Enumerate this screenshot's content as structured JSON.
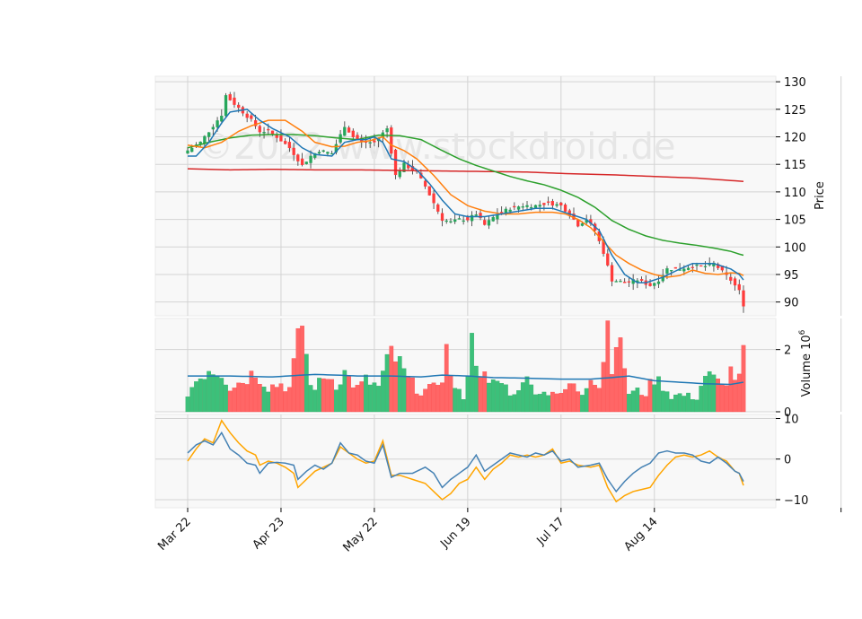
{
  "chart_data": {
    "type": "candlestick",
    "watermark": "©2022 www.stockdroid.de",
    "colors": {
      "up": "#26a65b",
      "down": "#ff3b3b",
      "up_vol": "#3cc07a",
      "down_vol": "#ff6666",
      "ma_fast": "#1f77b4",
      "ma_mid": "#ff7f0e",
      "ma_slow": "#2ca02c",
      "ma_long": "#d62728",
      "osc_a": "#4682b4",
      "osc_b": "#ffa500",
      "vol_ma": "#1f77b4",
      "panel_bg": "#f8f8f8",
      "grid": "#d3d3d3"
    },
    "x_ticks": [
      {
        "label": "Mar 22",
        "index": 0
      },
      {
        "label": "Apr 23",
        "index": 22
      },
      {
        "label": "May 22",
        "index": 44
      },
      {
        "label": "Jun 19",
        "index": 66
      },
      {
        "label": "Jul 17",
        "index": 88
      },
      {
        "label": "Aug 14",
        "index": 110
      }
    ],
    "n_bars": 132,
    "price_panel": {
      "ylabel": "Price",
      "ylim": [
        87.5,
        131
      ],
      "yticks": [
        "90",
        "95",
        "100",
        "105",
        "110",
        "115",
        "120",
        "125",
        "130"
      ],
      "ytick_values": [
        90,
        95,
        100,
        105,
        110,
        115,
        120,
        125,
        130
      ]
    },
    "volume_panel": {
      "ylabel": "Volume  10",
      "ylabel_exp": "6",
      "ylim": [
        0,
        3.0
      ],
      "yticks": [
        "0",
        "2"
      ],
      "ytick_values": [
        0,
        2
      ]
    },
    "osc_panel": {
      "ylim": [
        -12,
        11
      ],
      "yticks": [
        "−10",
        "0",
        "10"
      ],
      "ytick_values": [
        -10,
        0,
        10
      ]
    },
    "close_anchors": [
      [
        0,
        117.5
      ],
      [
        3,
        119
      ],
      [
        5,
        121
      ],
      [
        8,
        124
      ],
      [
        9,
        127.5
      ],
      [
        11,
        126
      ],
      [
        13,
        124.5
      ],
      [
        15,
        123
      ],
      [
        17,
        121
      ],
      [
        19,
        121
      ],
      [
        21,
        120
      ],
      [
        24,
        118
      ],
      [
        27,
        114.8
      ],
      [
        29,
        116.5
      ],
      [
        31,
        117.5
      ],
      [
        34,
        117
      ],
      [
        37,
        122
      ],
      [
        39,
        120
      ],
      [
        41,
        119
      ],
      [
        44,
        119
      ],
      [
        47,
        121.5
      ],
      [
        49,
        113
      ],
      [
        51,
        115
      ],
      [
        54,
        113.5
      ],
      [
        56,
        111
      ],
      [
        58,
        108
      ],
      [
        60,
        105
      ],
      [
        62,
        104.5
      ],
      [
        64,
        105
      ],
      [
        66,
        105
      ],
      [
        68,
        106
      ],
      [
        70,
        104
      ],
      [
        73,
        106
      ],
      [
        76,
        107
      ],
      [
        79,
        107.5
      ],
      [
        82,
        107.5
      ],
      [
        85,
        108
      ],
      [
        88,
        107.5
      ],
      [
        90,
        106
      ],
      [
        92,
        104
      ],
      [
        94,
        105
      ],
      [
        96,
        103
      ],
      [
        98,
        99
      ],
      [
        100,
        94
      ],
      [
        103,
        93.5
      ],
      [
        106,
        94
      ],
      [
        109,
        93
      ],
      [
        111,
        94
      ],
      [
        113,
        96
      ],
      [
        116,
        96
      ],
      [
        119,
        96.5
      ],
      [
        122,
        96.5
      ],
      [
        124,
        97
      ],
      [
        126,
        95.5
      ],
      [
        128,
        94
      ],
      [
        130,
        92
      ],
      [
        131,
        89.5
      ]
    ],
    "ma_fast": [
      [
        0,
        116.5
      ],
      [
        2,
        116.5
      ],
      [
        5,
        119
      ],
      [
        8,
        122.5
      ],
      [
        10,
        124.5
      ],
      [
        14,
        125
      ],
      [
        17,
        123
      ],
      [
        20,
        121.5
      ],
      [
        24,
        120
      ],
      [
        27,
        118
      ],
      [
        30,
        116.8
      ],
      [
        34,
        116.5
      ],
      [
        37,
        119
      ],
      [
        40,
        119.5
      ],
      [
        42,
        119.5
      ],
      [
        44,
        120
      ],
      [
        46,
        119
      ],
      [
        48,
        116
      ],
      [
        51,
        115.5
      ],
      [
        54,
        114
      ],
      [
        57,
        111.5
      ],
      [
        60,
        108.5
      ],
      [
        63,
        106
      ],
      [
        66,
        105.5
      ],
      [
        70,
        105.5
      ],
      [
        74,
        106
      ],
      [
        78,
        106.5
      ],
      [
        82,
        107
      ],
      [
        86,
        107
      ],
      [
        90,
        106
      ],
      [
        94,
        105
      ],
      [
        97,
        103
      ],
      [
        100,
        98.5
      ],
      [
        103,
        95
      ],
      [
        106,
        93.5
      ],
      [
        108,
        93.5
      ],
      [
        112,
        94.5
      ],
      [
        116,
        96
      ],
      [
        119,
        97
      ],
      [
        122,
        97
      ],
      [
        124,
        97
      ],
      [
        126,
        96.5
      ],
      [
        128,
        96
      ],
      [
        130,
        95
      ],
      [
        131,
        94
      ]
    ],
    "ma_mid": [
      [
        0,
        118.5
      ],
      [
        4,
        118
      ],
      [
        8,
        119
      ],
      [
        12,
        121
      ],
      [
        15,
        122
      ],
      [
        19,
        123
      ],
      [
        23,
        123
      ],
      [
        27,
        121
      ],
      [
        30,
        119
      ],
      [
        34,
        118.2
      ],
      [
        37,
        118.3
      ],
      [
        40,
        119
      ],
      [
        43,
        119.3
      ],
      [
        46,
        120
      ],
      [
        48,
        118.5
      ],
      [
        51,
        117.5
      ],
      [
        54,
        116
      ],
      [
        58,
        113
      ],
      [
        62,
        109.5
      ],
      [
        66,
        107.5
      ],
      [
        70,
        106.5
      ],
      [
        74,
        106
      ],
      [
        78,
        106
      ],
      [
        82,
        106.3
      ],
      [
        86,
        106.3
      ],
      [
        89,
        106
      ],
      [
        92,
        105
      ],
      [
        95,
        103.5
      ],
      [
        98,
        101
      ],
      [
        101,
        98.5
      ],
      [
        104,
        97
      ],
      [
        107,
        95.8
      ],
      [
        110,
        95
      ],
      [
        113,
        94.5
      ],
      [
        116,
        94.8
      ],
      [
        119,
        95.8
      ],
      [
        122,
        95.2
      ],
      [
        125,
        95
      ],
      [
        128,
        95.3
      ],
      [
        130,
        95.2
      ],
      [
        131,
        94.8
      ]
    ],
    "ma_slow": [
      [
        0,
        118
      ],
      [
        5,
        119
      ],
      [
        10,
        119.8
      ],
      [
        15,
        120.3
      ],
      [
        20,
        120.4
      ],
      [
        25,
        120.4
      ],
      [
        30,
        120.2
      ],
      [
        35,
        119.8
      ],
      [
        40,
        119.5
      ],
      [
        45,
        120.3
      ],
      [
        50,
        120.2
      ],
      [
        55,
        119.5
      ],
      [
        60,
        117.5
      ],
      [
        64,
        116
      ],
      [
        68,
        114.8
      ],
      [
        72,
        113.8
      ],
      [
        76,
        112.8
      ],
      [
        80,
        112
      ],
      [
        84,
        111.3
      ],
      [
        88,
        110.3
      ],
      [
        92,
        109
      ],
      [
        96,
        107.2
      ],
      [
        100,
        104.8
      ],
      [
        104,
        103.2
      ],
      [
        108,
        102
      ],
      [
        112,
        101.2
      ],
      [
        116,
        100.7
      ],
      [
        120,
        100.3
      ],
      [
        124,
        99.8
      ],
      [
        128,
        99.2
      ],
      [
        130,
        98.7
      ],
      [
        131,
        98.5
      ]
    ],
    "ma_long": [
      [
        0,
        114.2
      ],
      [
        10,
        114
      ],
      [
        20,
        114.1
      ],
      [
        30,
        114
      ],
      [
        40,
        114
      ],
      [
        50,
        113.9
      ],
      [
        60,
        113.8
      ],
      [
        70,
        113.7
      ],
      [
        80,
        113.6
      ],
      [
        90,
        113.3
      ],
      [
        100,
        113.1
      ],
      [
        110,
        112.8
      ],
      [
        120,
        112.5
      ],
      [
        131,
        111.9
      ]
    ],
    "volume_anchors": [
      [
        0,
        0.6
      ],
      [
        2,
        1.0
      ],
      [
        5,
        1.4
      ],
      [
        8,
        1.3
      ],
      [
        10,
        0.8
      ],
      [
        13,
        1.0
      ],
      [
        16,
        1.3
      ],
      [
        19,
        0.8
      ],
      [
        22,
        0.9
      ],
      [
        24,
        0.75
      ],
      [
        27,
        2.9
      ],
      [
        29,
        0.8
      ],
      [
        31,
        0.9
      ],
      [
        33,
        1.2
      ],
      [
        35,
        0.9
      ],
      [
        37,
        1.25
      ],
      [
        40,
        0.75
      ],
      [
        42,
        1.0
      ],
      [
        45,
        0.8
      ],
      [
        48,
        1.9
      ],
      [
        50,
        1.5
      ],
      [
        52,
        1.0
      ],
      [
        55,
        0.65
      ],
      [
        58,
        0.75
      ],
      [
        60,
        1.2
      ],
      [
        61,
        1.9
      ],
      [
        63,
        0.7
      ],
      [
        65,
        0.5
      ],
      [
        67,
        2.2
      ],
      [
        69,
        1.4
      ],
      [
        71,
        0.8
      ],
      [
        73,
        1.0
      ],
      [
        75,
        0.8
      ],
      [
        77,
        0.5
      ],
      [
        79,
        1.15
      ],
      [
        81,
        0.8
      ],
      [
        84,
        0.6
      ],
      [
        86,
        0.7
      ],
      [
        88,
        0.5
      ],
      [
        90,
        0.9
      ],
      [
        93,
        0.6
      ],
      [
        95,
        1.25
      ],
      [
        97,
        0.8
      ],
      [
        99,
        2.8
      ],
      [
        100,
        1.6
      ],
      [
        101,
        2.4
      ],
      [
        103,
        1.5
      ],
      [
        104,
        0.6
      ],
      [
        106,
        0.65
      ],
      [
        108,
        0.6
      ],
      [
        110,
        1.1
      ],
      [
        112,
        0.85
      ],
      [
        114,
        0.5
      ],
      [
        116,
        0.55
      ],
      [
        118,
        0.5
      ],
      [
        120,
        0.45
      ],
      [
        122,
        1.2
      ],
      [
        124,
        1.05
      ],
      [
        126,
        0.8
      ],
      [
        128,
        1.3
      ],
      [
        130,
        1.0
      ],
      [
        131,
        2.0
      ]
    ],
    "volume_ma": [
      [
        0,
        1.15
      ],
      [
        10,
        1.15
      ],
      [
        20,
        1.12
      ],
      [
        27,
        1.18
      ],
      [
        30,
        1.2
      ],
      [
        35,
        1.18
      ],
      [
        40,
        1.15
      ],
      [
        48,
        1.15
      ],
      [
        55,
        1.12
      ],
      [
        60,
        1.18
      ],
      [
        66,
        1.15
      ],
      [
        72,
        1.1
      ],
      [
        80,
        1.08
      ],
      [
        88,
        1.05
      ],
      [
        95,
        1.05
      ],
      [
        100,
        1.1
      ],
      [
        104,
        1.15
      ],
      [
        110,
        1.0
      ],
      [
        116,
        0.95
      ],
      [
        122,
        0.9
      ],
      [
        128,
        0.88
      ],
      [
        131,
        0.95
      ]
    ],
    "osc_a": [
      [
        0,
        1.5
      ],
      [
        2,
        3.5
      ],
      [
        4,
        4.5
      ],
      [
        6,
        3.5
      ],
      [
        8,
        6.5
      ],
      [
        10,
        2.5
      ],
      [
        12,
        1
      ],
      [
        14,
        -1
      ],
      [
        16,
        -1.5
      ],
      [
        17,
        -3.5
      ],
      [
        19,
        -1
      ],
      [
        21,
        -0.8
      ],
      [
        23,
        -1
      ],
      [
        25,
        -1.5
      ],
      [
        26,
        -5
      ],
      [
        28,
        -3
      ],
      [
        30,
        -1.5
      ],
      [
        32,
        -2.5
      ],
      [
        34,
        -1
      ],
      [
        36,
        4
      ],
      [
        38,
        1.5
      ],
      [
        40,
        1
      ],
      [
        42,
        -0.5
      ],
      [
        44,
        -1
      ],
      [
        46,
        3.5
      ],
      [
        48,
        -4.5
      ],
      [
        50,
        -3.5
      ],
      [
        53,
        -3.5
      ],
      [
        56,
        -2
      ],
      [
        58,
        -3.5
      ],
      [
        60,
        -7
      ],
      [
        62,
        -5
      ],
      [
        64,
        -3.5
      ],
      [
        66,
        -2
      ],
      [
        68,
        1
      ],
      [
        70,
        -3
      ],
      [
        72,
        -1.5
      ],
      [
        74,
        0
      ],
      [
        76,
        1.5
      ],
      [
        78,
        1
      ],
      [
        80,
        0.5
      ],
      [
        82,
        1.5
      ],
      [
        84,
        1
      ],
      [
        86,
        2
      ],
      [
        88,
        -0.5
      ],
      [
        90,
        0
      ],
      [
        92,
        -2
      ],
      [
        95,
        -1.5
      ],
      [
        97,
        -1
      ],
      [
        99,
        -5
      ],
      [
        101,
        -8
      ],
      [
        103,
        -5.5
      ],
      [
        105,
        -3.5
      ],
      [
        107,
        -2
      ],
      [
        109,
        -1
      ],
      [
        111,
        1.5
      ],
      [
        113,
        2
      ],
      [
        115,
        1.5
      ],
      [
        117,
        1.5
      ],
      [
        119,
        1
      ],
      [
        121,
        -0.5
      ],
      [
        123,
        -1
      ],
      [
        125,
        0.5
      ],
      [
        127,
        -1
      ],
      [
        129,
        -3
      ],
      [
        130,
        -3.5
      ],
      [
        131,
        -5.5
      ]
    ],
    "osc_b": [
      [
        0,
        -0.5
      ],
      [
        2,
        2.5
      ],
      [
        4,
        5
      ],
      [
        6,
        4
      ],
      [
        8,
        9.5
      ],
      [
        10,
        6.5
      ],
      [
        12,
        4
      ],
      [
        14,
        2
      ],
      [
        16,
        1
      ],
      [
        17,
        -1.5
      ],
      [
        19,
        -0.5
      ],
      [
        21,
        -1
      ],
      [
        23,
        -2
      ],
      [
        25,
        -3.5
      ],
      [
        26,
        -7
      ],
      [
        28,
        -5
      ],
      [
        30,
        -3
      ],
      [
        32,
        -2
      ],
      [
        34,
        -1
      ],
      [
        36,
        3
      ],
      [
        38,
        1.5
      ],
      [
        40,
        0
      ],
      [
        42,
        -1
      ],
      [
        44,
        -0.5
      ],
      [
        46,
        4.5
      ],
      [
        48,
        -4
      ],
      [
        50,
        -4
      ],
      [
        53,
        -5
      ],
      [
        56,
        -6
      ],
      [
        58,
        -8
      ],
      [
        60,
        -10
      ],
      [
        62,
        -8.5
      ],
      [
        64,
        -6
      ],
      [
        66,
        -5
      ],
      [
        68,
        -2
      ],
      [
        70,
        -5
      ],
      [
        72,
        -2.5
      ],
      [
        74,
        -1
      ],
      [
        76,
        1
      ],
      [
        78,
        0.5
      ],
      [
        80,
        1
      ],
      [
        82,
        0.5
      ],
      [
        84,
        1
      ],
      [
        86,
        2.5
      ],
      [
        88,
        -1
      ],
      [
        90,
        -0.5
      ],
      [
        92,
        -1.5
      ],
      [
        95,
        -2
      ],
      [
        97,
        -1.5
      ],
      [
        99,
        -7
      ],
      [
        101,
        -10.5
      ],
      [
        103,
        -9
      ],
      [
        105,
        -8
      ],
      [
        107,
        -7.5
      ],
      [
        109,
        -7
      ],
      [
        111,
        -4
      ],
      [
        113,
        -1.5
      ],
      [
        115,
        0.5
      ],
      [
        117,
        1
      ],
      [
        119,
        0.5
      ],
      [
        121,
        1
      ],
      [
        123,
        2
      ],
      [
        125,
        0.5
      ],
      [
        127,
        -0.5
      ],
      [
        129,
        -3
      ],
      [
        130,
        -3.5
      ],
      [
        131,
        -6.5
      ]
    ]
  }
}
